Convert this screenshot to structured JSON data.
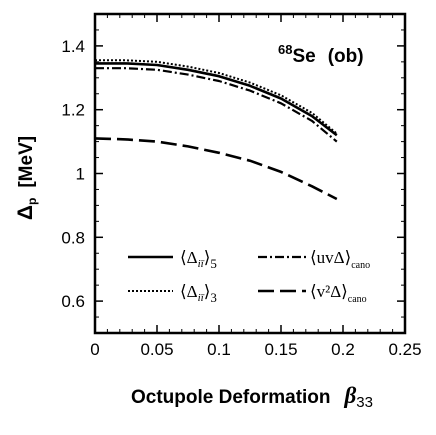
{
  "chart_data": {
    "type": "line",
    "xlabel": "Octupole Deformation",
    "xlabel_symbol": "β",
    "xlabel_sub": "33",
    "ylabel": "Δ",
    "ylabel_sub": "p",
    "ylabel_unit": "[MeV]",
    "annotation": {
      "mass": "68",
      "element": "Se",
      "suffix": "(ob)"
    },
    "xlim": [
      0,
      0.25
    ],
    "ylim": [
      0.5,
      1.5
    ],
    "xticks": [
      "0",
      "0.05",
      "0.1",
      "0.15",
      "0.2",
      "0.25"
    ],
    "yticks": [
      "0.6",
      "0.8",
      "1",
      "1.2",
      "1.4"
    ],
    "series": [
      {
        "style": "solid",
        "legend": {
          "main": "⟨Δ",
          "sub1": "iī",
          "close": "⟩",
          "sub2": "5"
        },
        "x": [
          0,
          0.025,
          0.05,
          0.075,
          0.1,
          0.125,
          0.15,
          0.175,
          0.195
        ],
        "y": [
          1.345,
          1.345,
          1.34,
          1.325,
          1.305,
          1.275,
          1.235,
          1.18,
          1.12
        ]
      },
      {
        "style": "dotted",
        "legend": {
          "main": "⟨Δ",
          "sub1": "iī",
          "close": "⟩",
          "sub2": "3"
        },
        "x": [
          0,
          0.025,
          0.05,
          0.075,
          0.1,
          0.125,
          0.15,
          0.175,
          0.195
        ],
        "y": [
          1.355,
          1.355,
          1.35,
          1.335,
          1.315,
          1.285,
          1.245,
          1.19,
          1.125
        ]
      },
      {
        "style": "dashdot",
        "legend": {
          "main": "⟨uvΔ⟩",
          "sub1": "",
          "close": "",
          "sub2": "cano"
        },
        "x": [
          0,
          0.025,
          0.05,
          0.075,
          0.1,
          0.125,
          0.15,
          0.175,
          0.195
        ],
        "y": [
          1.33,
          1.33,
          1.325,
          1.31,
          1.29,
          1.26,
          1.22,
          1.165,
          1.1
        ]
      },
      {
        "style": "longdash",
        "legend": {
          "main": "⟨v²Δ⟩",
          "sub1": "",
          "close": "",
          "sub2": "cano"
        },
        "x": [
          0,
          0.025,
          0.05,
          0.075,
          0.1,
          0.125,
          0.15,
          0.175,
          0.195
        ],
        "y": [
          1.11,
          1.107,
          1.1,
          1.085,
          1.065,
          1.04,
          1.005,
          0.96,
          0.92
        ]
      }
    ]
  }
}
